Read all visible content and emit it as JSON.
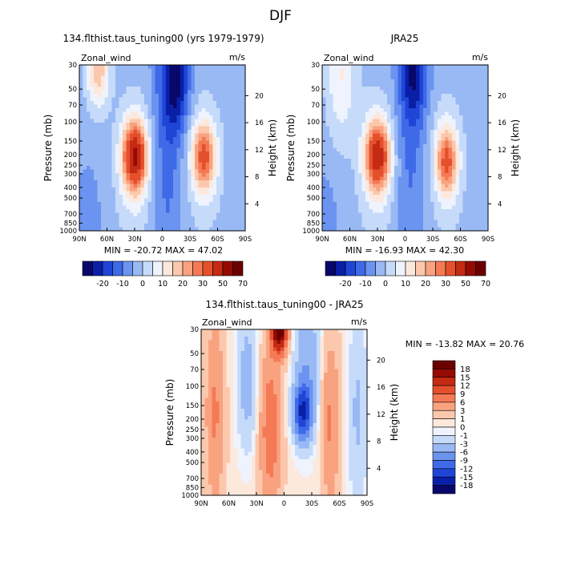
{
  "season": "DJF",
  "colors": {
    "cb1": [
      "#08086b",
      "#0a1fa8",
      "#1f45d6",
      "#3e6ae8",
      "#6b93f0",
      "#99b9f5",
      "#c6dbfa",
      "#eef3fd",
      "#fde8dc",
      "#fbc8ad",
      "#f9a27f",
      "#f47a55",
      "#e5502c",
      "#c42a14",
      "#960a04",
      "#6b0000"
    ],
    "cb3": [
      "#08086b",
      "#0a1fa8",
      "#1f45d6",
      "#3e6ae8",
      "#6b93f0",
      "#99b9f5",
      "#c6dbfa",
      "#eef3fd",
      "#fde8dc",
      "#fbc8ad",
      "#f9a27f",
      "#f47a55",
      "#e5502c",
      "#c42a14",
      "#960a04",
      "#6b0000"
    ]
  },
  "panels": [
    {
      "title": "134.flthist.taus_tuning00 (yrs 1979-1979)",
      "var": "Zonal_wind",
      "units": "m/s",
      "min_max": "MIN = -20.72   MAX =  47.02",
      "plevels": [
        "30",
        "50",
        "70",
        "100",
        "150",
        "200",
        "250",
        "300",
        "400",
        "500",
        "700",
        "850",
        "1000"
      ],
      "lat_labels": [
        "90N",
        "60N",
        "30N",
        "0",
        "30S",
        "60S",
        "90S"
      ],
      "height_labels": [
        "20",
        "16",
        "12",
        "8",
        "4"
      ],
      "ylabel_left": "Pressure (mb)",
      "ylabel_right": "Height (km)"
    },
    {
      "title": "JRA25",
      "var": "Zonal_wind",
      "units": "m/s",
      "min_max": "MIN = -16.93   MAX =  42.30",
      "plevels": [
        "30",
        "50",
        "70",
        "100",
        "150",
        "200",
        "250",
        "300",
        "400",
        "500",
        "700",
        "850",
        "1000"
      ],
      "lat_labels": [
        "90N",
        "60N",
        "30N",
        "0",
        "30S",
        "60S",
        "90S"
      ],
      "height_labels": [
        "20",
        "16",
        "12",
        "8",
        "4"
      ],
      "ylabel_left": "Pressure (mb)",
      "ylabel_right": "Height (km)"
    },
    {
      "title": "134.flthist.taus_tuning00 - JRA25",
      "var": "Zonal_wind",
      "units": "m/s",
      "min_max": "MIN = -13.82   MAX =  20.76",
      "plevels": [
        "30",
        "50",
        "70",
        "100",
        "150",
        "200",
        "250",
        "300",
        "400",
        "500",
        "700",
        "850",
        "1000"
      ],
      "lat_labels": [
        "90N",
        "60N",
        "30N",
        "0",
        "30S",
        "60S",
        "90S"
      ],
      "height_labels": [
        "20",
        "16",
        "12",
        "8",
        "4"
      ],
      "ylabel_left": "Pressure (mb)",
      "ylabel_right": "Height (km)"
    }
  ],
  "colorbar1": {
    "labels": [
      "-20",
      "-10",
      "0",
      "10",
      "20",
      "30",
      "50",
      "70"
    ]
  },
  "colorbar2": {
    "labels": [
      "-20",
      "-10",
      "0",
      "10",
      "20",
      "30",
      "50",
      "70"
    ]
  },
  "colorbar3": {
    "labels": [
      "18",
      "15",
      "12",
      "9",
      "6",
      "3",
      "1",
      "0",
      "-1",
      "-3",
      "-6",
      "-9",
      "-12",
      "-15",
      "-18"
    ]
  },
  "chart_data": [
    {
      "type": "heatmap",
      "title": "134.flthist.taus_tuning00 (yrs 1979-1979)",
      "variable": "Zonal_wind",
      "units": "m/s",
      "xlabel": "",
      "ylabel": "Pressure (mb)",
      "y2label": "Height (km)",
      "x_ticks": [
        "90N",
        "60N",
        "30N",
        "0",
        "30S",
        "60S",
        "90S"
      ],
      "y_ticks": [
        30,
        50,
        70,
        100,
        150,
        200,
        250,
        300,
        400,
        500,
        700,
        850,
        1000
      ],
      "ylim": [
        1000,
        30
      ],
      "min": -20.72,
      "max": 47.02,
      "contour_levels": [
        -25,
        -20,
        -15,
        -10,
        -5,
        0,
        5,
        10,
        15,
        20,
        25,
        30,
        40,
        50,
        60,
        70
      ],
      "features": [
        {
          "kind": "max",
          "lat": 30,
          "lev": 200,
          "value": 47.02
        },
        {
          "kind": "max",
          "lat": -45,
          "lev": 200,
          "value": 30
        },
        {
          "kind": "max",
          "lat": 70,
          "lev": 30,
          "value": 25
        },
        {
          "kind": "min",
          "lat": -15,
          "lev": 40,
          "value": -20.72
        }
      ]
    },
    {
      "type": "heatmap",
      "title": "JRA25",
      "variable": "Zonal_wind",
      "units": "m/s",
      "xlabel": "",
      "ylabel": "Pressure (mb)",
      "y2label": "Height (km)",
      "x_ticks": [
        "90N",
        "60N",
        "30N",
        "0",
        "30S",
        "60S",
        "90S"
      ],
      "y_ticks": [
        30,
        50,
        70,
        100,
        150,
        200,
        250,
        300,
        400,
        500,
        700,
        850,
        1000
      ],
      "ylim": [
        1000,
        30
      ],
      "min": -16.93,
      "max": 42.3,
      "contour_levels": [
        -25,
        -20,
        -15,
        -10,
        -5,
        0,
        5,
        10,
        15,
        20,
        25,
        30,
        40,
        50,
        60,
        70
      ],
      "features": [
        {
          "kind": "max",
          "lat": 30,
          "lev": 200,
          "value": 42.3
        },
        {
          "kind": "max",
          "lat": -45,
          "lev": 200,
          "value": 30
        },
        {
          "kind": "min",
          "lat": -10,
          "lev": 40,
          "value": -16.93
        }
      ]
    },
    {
      "type": "heatmap",
      "title": "134.flthist.taus_tuning00 - JRA25",
      "variable": "Zonal_wind",
      "units": "m/s",
      "xlabel": "",
      "ylabel": "Pressure (mb)",
      "y2label": "Height (km)",
      "x_ticks": [
        "90N",
        "60N",
        "30N",
        "0",
        "30S",
        "60S",
        "90S"
      ],
      "y_ticks": [
        30,
        50,
        70,
        100,
        150,
        200,
        250,
        300,
        400,
        500,
        700,
        850,
        1000
      ],
      "ylim": [
        1000,
        30
      ],
      "min": -13.82,
      "max": 20.76,
      "contour_levels": [
        -18,
        -15,
        -12,
        -9,
        -6,
        -3,
        -1,
        0,
        1,
        3,
        6,
        9,
        12,
        15,
        18
      ],
      "features": [
        {
          "kind": "max",
          "lat": 5,
          "lev": 30,
          "value": 20.76
        },
        {
          "kind": "max",
          "lat": -50,
          "lev": 300,
          "value": 6
        },
        {
          "kind": "max",
          "lat": 75,
          "lev": 200,
          "value": 6
        },
        {
          "kind": "min",
          "lat": -20,
          "lev": 200,
          "value": -13.82
        }
      ]
    }
  ]
}
